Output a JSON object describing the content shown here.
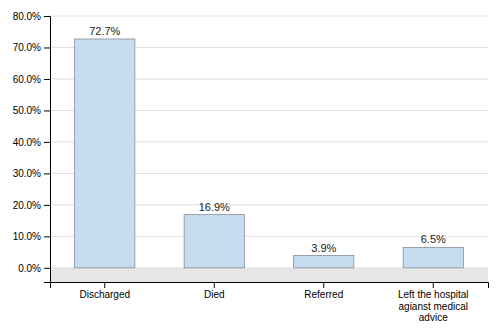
{
  "chart_data": {
    "type": "bar",
    "categories": [
      "Discharged",
      "Died",
      "Referred",
      "Left the hospital\nagianst medical\nadvice"
    ],
    "values": [
      72.7,
      16.9,
      3.9,
      6.5
    ],
    "value_labels": [
      "72.7%",
      "16.9%",
      "3.9%",
      "6.5%"
    ],
    "data_labels": true,
    "color": "#C8DCF0",
    "ylim": [
      -4.5,
      80
    ],
    "yticks": [
      {
        "value": 0,
        "label": "0.0%"
      },
      {
        "value": 10,
        "label": "10.0%"
      },
      {
        "value": 20,
        "label": "20.0%"
      },
      {
        "value": 30,
        "label": "30.0%"
      },
      {
        "value": 40,
        "label": "40.0%"
      },
      {
        "value": 50,
        "label": "50.0%"
      },
      {
        "value": 60,
        "label": "60.0%"
      },
      {
        "value": 70,
        "label": "70.0%"
      },
      {
        "value": 80,
        "label": "80.0%"
      }
    ],
    "grid": true
  }
}
